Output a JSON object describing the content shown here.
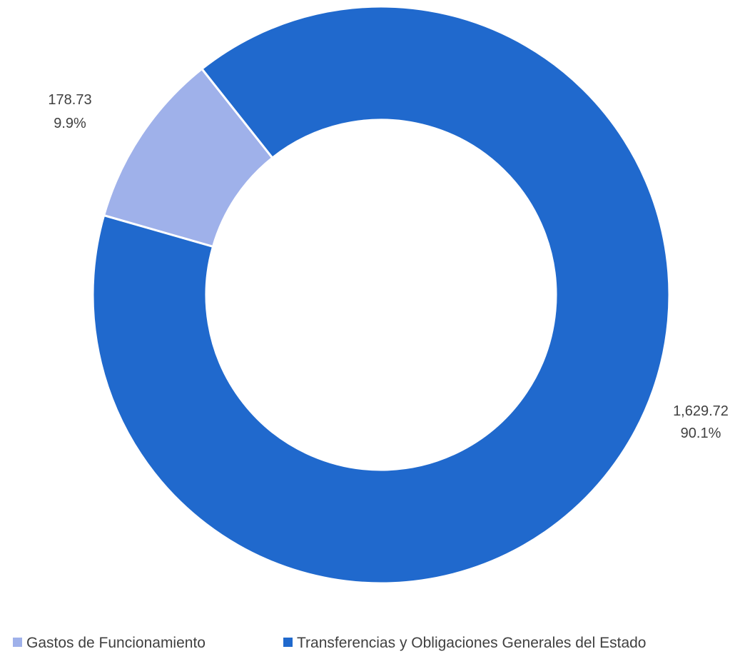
{
  "chart_data": {
    "type": "pie",
    "variant": "donut",
    "title": "",
    "legend_position": "bottom",
    "categories": [
      "Gastos de Funcionamiento",
      "Transferencias y Obligaciones Generales del Estado"
    ],
    "values": [
      178.73,
      1629.72
    ],
    "value_labels": [
      "178.73",
      "1,629.72"
    ],
    "percent_labels": [
      "9.9%",
      "90.1%"
    ],
    "colors": [
      "#9fb1ea",
      "#2069cd"
    ]
  }
}
